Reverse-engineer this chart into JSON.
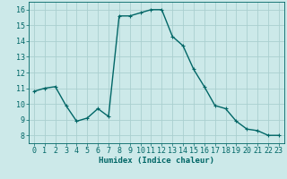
{
  "x": [
    0,
    1,
    2,
    3,
    4,
    5,
    6,
    7,
    8,
    9,
    10,
    11,
    12,
    13,
    14,
    15,
    16,
    17,
    18,
    19,
    20,
    21,
    22,
    23
  ],
  "y": [
    10.8,
    11.0,
    11.1,
    9.9,
    8.9,
    9.1,
    9.7,
    9.2,
    15.6,
    15.6,
    15.8,
    16.0,
    16.0,
    14.3,
    13.7,
    12.2,
    11.1,
    9.9,
    9.7,
    8.9,
    8.4,
    8.3,
    8.0,
    8.0
  ],
  "line_color": "#006666",
  "marker": "+",
  "marker_size": 3,
  "line_width": 1.0,
  "xlabel": "Humidex (Indice chaleur)",
  "xlabel_fontsize": 6.5,
  "tick_fontsize": 6,
  "ylim": [
    7.5,
    16.5
  ],
  "yticks": [
    8,
    9,
    10,
    11,
    12,
    13,
    14,
    15,
    16
  ],
  "xlim": [
    -0.5,
    23.5
  ],
  "xticks": [
    0,
    1,
    2,
    3,
    4,
    5,
    6,
    7,
    8,
    9,
    10,
    11,
    12,
    13,
    14,
    15,
    16,
    17,
    18,
    19,
    20,
    21,
    22,
    23
  ],
  "bg_color": "#cce9e9",
  "grid_color": "#aacfcf",
  "spine_color": "#006666"
}
